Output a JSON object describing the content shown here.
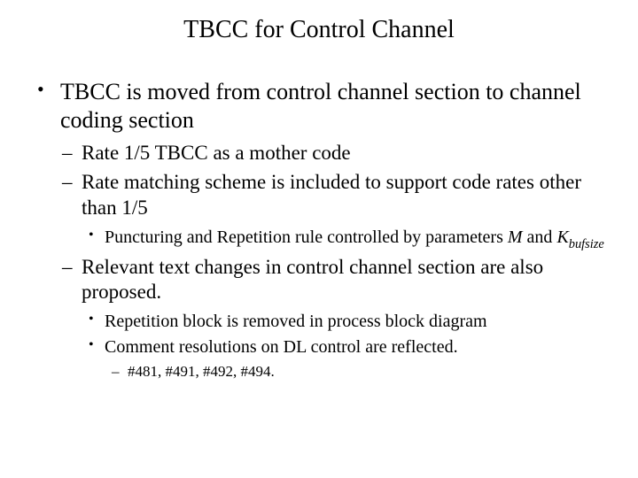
{
  "title": "TBCC for Control Channel",
  "b1": "TBCC is moved from control channel section to channel coding section",
  "b1_1": "Rate 1/5 TBCC as a mother code",
  "b1_2": "Rate matching scheme is included to support code rates other than 1/5",
  "b1_2_1_pre": "Puncturing and Repetition rule controlled by parameters ",
  "b1_2_1_M": "M",
  "b1_2_1_and": " and ",
  "b1_2_1_K": "K",
  "b1_2_1_sub": "bufsize",
  "b1_3": "Relevant text changes in control channel section are also proposed.",
  "b1_3_1": "Repetition block is removed in process block diagram",
  "b1_3_2": "Comment resolutions on DL control are reflected.",
  "b1_3_2_1": "#481, #491, #492, #494."
}
